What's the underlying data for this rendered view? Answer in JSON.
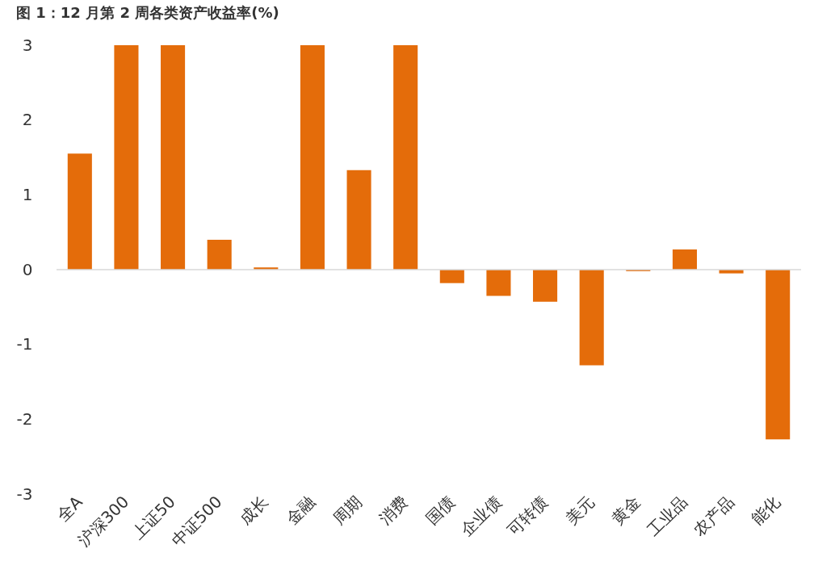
{
  "chart_data": {
    "type": "bar",
    "title": "图 1：12 月第 2 周各类资产收益率(%)",
    "categories": [
      "全A",
      "沪深300",
      "上证50",
      "中证500",
      "成长",
      "金融",
      "周期",
      "消费",
      "国债",
      "企业债",
      "可转债",
      "美元",
      "黄金",
      "工业品",
      "农产品",
      "能化"
    ],
    "values": [
      1.55,
      3,
      3,
      0.4,
      0.03,
      3,
      1.33,
      3,
      -0.18,
      -0.35,
      -0.43,
      -1.28,
      -0.02,
      0.27,
      -0.05,
      -2.27
    ],
    "color": "#e46c0a",
    "ylim": [
      -3,
      3
    ],
    "yticks": [
      -3,
      -2,
      -1,
      0,
      1,
      2,
      3
    ],
    "grid": false,
    "ref_lines": [
      {
        "axis": "y",
        "value": 0,
        "color": "#d9d9d9"
      }
    ]
  }
}
